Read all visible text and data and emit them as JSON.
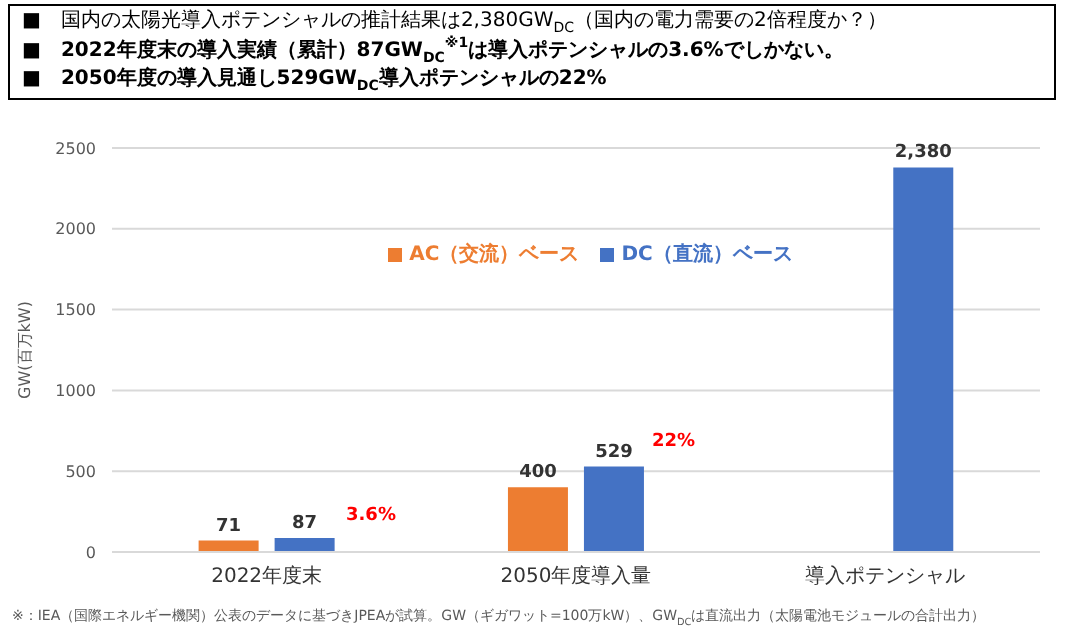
{
  "chart_data": {
    "type": "bar",
    "ylabel": "GW(百万kW)",
    "categories": [
      "2022年度末",
      "2050年度導入量",
      "導入ポテンシャル"
    ],
    "series": [
      {
        "name": "AC（交流）ベース",
        "color": "#ed7d31",
        "values": [
          71,
          400,
          null
        ],
        "value_labels": [
          "71",
          "400",
          null
        ]
      },
      {
        "name": "DC（直流）ベース",
        "color": "#4472c4",
        "values": [
          87,
          529,
          2380
        ],
        "value_labels": [
          "87",
          "529",
          "2,380"
        ]
      }
    ],
    "ylim": [
      0,
      2500
    ],
    "yticks": [
      0,
      500,
      1000,
      1500,
      2000,
      2500
    ],
    "grid": "y",
    "legend": "top",
    "annotations": [
      "■　国内の太陽光導入ポテンシャルの推計結果は2,380GW$_{DC}$（国内の電力需要の2倍程度か？）",
      "■　2022年度末の導入実績（累計）87GW$_{DC}$$^{※1}$は導入ポテンシャルの3.6%でしかない。",
      "■　2050年度の導入見通し529GW$_{DC}$導入ポテンシャルの22%",
      "3.6%",
      "22%",
      "※：IEA（国際エネルギー機関）公表のデータに基づきJPEAが試算。GW（ギガワット=100万kW）、GW$_{DC}$は直流出力（太陽電池モジュールの合計出力）"
    ]
  }
}
